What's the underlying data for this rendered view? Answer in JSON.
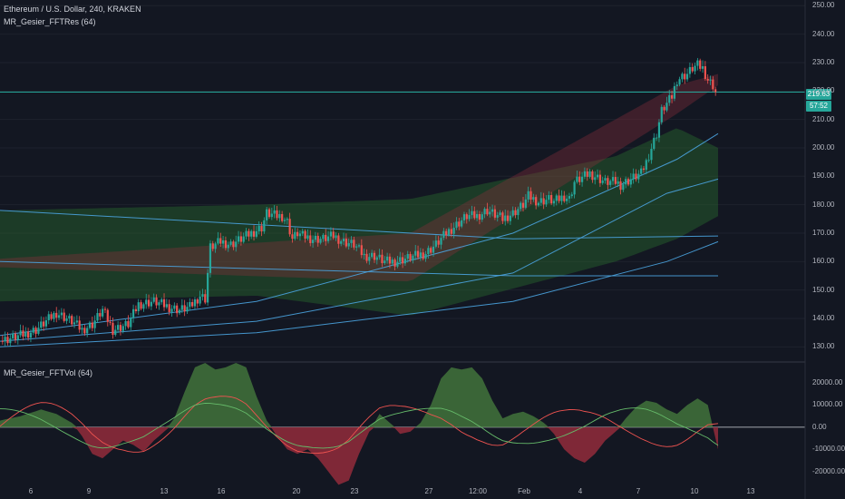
{
  "header": {
    "symbol_line": "Ethereum / U.S. Dollar, 240, KRAKEN",
    "indicator_main": "MR_Gesier_FFTRes (64)",
    "indicator_sub": "MR_Gesier_FFTVol (64)"
  },
  "price_tag": {
    "value": "219.63",
    "countdown": "57:52"
  },
  "colors": {
    "background": "#131722",
    "up": "#26a69a",
    "down": "#ef5350",
    "band_green": "#2e7d32",
    "band_red": "#8e2f3c",
    "line_blue": "#4aa3df",
    "price_line": "#26a69a",
    "osc_green": "#3f6e3a",
    "osc_red": "#8c2a3a"
  },
  "chart_data": [
    {
      "type": "candlestick",
      "title": "Ethereum / U.S. Dollar, 240, KRAKEN",
      "ylim": [
        125,
        252
      ],
      "y_ticks": [
        "250.00",
        "240.00",
        "230.00",
        "220.00",
        "210.00",
        "200.00",
        "190.00",
        "180.00",
        "170.00",
        "160.00",
        "150.00",
        "140.00",
        "130.00"
      ],
      "x_ticks": [
        "6",
        "9",
        "13",
        "16",
        "20",
        "23",
        "27",
        "12:00",
        "Feb",
        "4",
        "7",
        "10",
        "13"
      ],
      "last_price": 219.63,
      "close_path": [
        [
          0,
          132
        ],
        [
          8,
          134
        ],
        [
          14,
          136
        ],
        [
          22,
          142
        ],
        [
          28,
          139
        ],
        [
          32,
          136
        ],
        [
          36,
          138
        ],
        [
          40,
          143
        ],
        [
          44,
          136
        ],
        [
          50,
          138
        ],
        [
          54,
          145
        ],
        [
          60,
          146
        ],
        [
          66,
          144
        ],
        [
          70,
          143
        ],
        [
          74,
          144
        ],
        [
          78,
          148
        ],
        [
          80,
          147
        ],
        [
          82,
          165
        ],
        [
          86,
          167
        ],
        [
          90,
          166
        ],
        [
          94,
          168
        ],
        [
          98,
          170
        ],
        [
          102,
          172
        ],
        [
          104,
          177
        ],
        [
          108,
          176
        ],
        [
          110,
          176
        ],
        [
          112,
          174
        ],
        [
          114,
          168
        ],
        [
          116,
          170
        ],
        [
          118,
          169
        ],
        [
          122,
          168
        ],
        [
          126,
          168
        ],
        [
          130,
          169
        ],
        [
          134,
          167
        ],
        [
          138,
          166
        ],
        [
          142,
          162
        ],
        [
          146,
          162
        ],
        [
          150,
          160
        ],
        [
          154,
          160
        ],
        [
          158,
          161
        ],
        [
          162,
          162
        ],
        [
          166,
          163
        ],
        [
          170,
          166
        ],
        [
          174,
          170
        ],
        [
          178,
          173
        ],
        [
          182,
          176
        ],
        [
          186,
          176
        ],
        [
          190,
          178
        ],
        [
          194,
          176
        ],
        [
          196,
          175
        ],
        [
          200,
          177
        ],
        [
          204,
          180
        ],
        [
          206,
          183
        ],
        [
          210,
          181
        ],
        [
          214,
          182
        ],
        [
          216,
          181
        ],
        [
          218,
          182
        ],
        [
          220,
          183
        ],
        [
          222,
          182
        ],
        [
          224,
          188
        ],
        [
          228,
          190
        ],
        [
          230,
          191
        ],
        [
          232,
          190
        ],
        [
          236,
          188
        ],
        [
          240,
          188
        ],
        [
          242,
          187
        ],
        [
          246,
          189
        ],
        [
          250,
          191
        ],
        [
          252,
          195
        ],
        [
          256,
          205
        ],
        [
          258,
          213
        ],
        [
          262,
          218
        ],
        [
          264,
          224
        ],
        [
          266,
          225
        ],
        [
          268,
          226
        ],
        [
          270,
          228
        ],
        [
          272,
          229
        ],
        [
          274,
          228
        ],
        [
          276,
          224
        ],
        [
          278,
          222
        ],
        [
          279,
          219.63
        ]
      ],
      "bands": {
        "green_upper": [
          [
            0,
            178
          ],
          [
            100,
            180
          ],
          [
            160,
            182
          ],
          [
            240,
            197
          ],
          [
            264,
            207
          ],
          [
            280,
            200
          ]
        ],
        "green_lower": [
          [
            0,
            146
          ],
          [
            100,
            148
          ],
          [
            160,
            141
          ],
          [
            240,
            160
          ],
          [
            264,
            168
          ],
          [
            280,
            176
          ]
        ],
        "red_upper": [
          [
            0,
            161
          ],
          [
            160,
            170
          ],
          [
            264,
            222
          ],
          [
            280,
            226
          ]
        ],
        "red_lower": [
          [
            0,
            158
          ],
          [
            160,
            153
          ],
          [
            264,
            212
          ],
          [
            280,
            222
          ]
        ]
      },
      "lines": [
        {
          "name": "",
          "points": [
            [
              0,
              178
            ],
            [
              200,
              168
            ],
            [
              280,
              169
            ]
          ]
        },
        {
          "name": "",
          "points": [
            [
              0,
              160
            ],
            [
              200,
              155
            ],
            [
              280,
              155
            ]
          ]
        },
        {
          "name": "",
          "points": [
            [
              0,
              132
            ],
            [
              100,
              139
            ],
            [
              200,
              156
            ],
            [
              260,
              184
            ],
            [
              280,
              189
            ]
          ]
        },
        {
          "name": "",
          "points": [
            [
              0,
              130
            ],
            [
              100,
              135
            ],
            [
              200,
              146
            ],
            [
              260,
              160
            ],
            [
              280,
              167
            ]
          ]
        },
        {
          "name": "",
          "points": [
            [
              0,
              134
            ],
            [
              100,
              146
            ],
            [
              200,
              170
            ],
            [
              264,
              196
            ],
            [
              280,
              205
            ]
          ]
        }
      ]
    },
    {
      "type": "area",
      "title": "MR_Gesier_FFTVol (64)",
      "ylim": [
        -25000,
        29000
      ],
      "y_ticks": [
        "20000.00",
        "10000.00",
        "0.00",
        "-10000.00",
        "-20000.00"
      ],
      "series": [
        {
          "name": "",
          "values": [
            [
              0,
              3000
            ],
            [
              8,
              5000
            ],
            [
              16,
              8000
            ],
            [
              22,
              6000
            ],
            [
              28,
              2000
            ],
            [
              32,
              -4000
            ],
            [
              36,
              -12000
            ],
            [
              40,
              -14000
            ],
            [
              44,
              -10000
            ],
            [
              48,
              -6000
            ],
            [
              52,
              -8000
            ],
            [
              56,
              -11000
            ],
            [
              60,
              -6000
            ],
            [
              64,
              -2000
            ],
            [
              68,
              4000
            ],
            [
              72,
              16000
            ],
            [
              76,
              27000
            ],
            [
              80,
              29000
            ],
            [
              84,
              26000
            ],
            [
              88,
              27000
            ],
            [
              92,
              29000
            ],
            [
              96,
              27000
            ],
            [
              100,
              14000
            ],
            [
              104,
              3000
            ],
            [
              108,
              -4000
            ],
            [
              112,
              -10000
            ],
            [
              116,
              -12000
            ],
            [
              120,
              -10000
            ],
            [
              124,
              -14000
            ],
            [
              128,
              -20000
            ],
            [
              132,
              -26000
            ],
            [
              136,
              -24000
            ],
            [
              140,
              -12000
            ],
            [
              144,
              -2000
            ],
            [
              148,
              6000
            ],
            [
              152,
              2000
            ],
            [
              156,
              -3000
            ],
            [
              160,
              -2000
            ],
            [
              164,
              2000
            ],
            [
              168,
              10000
            ],
            [
              172,
              22000
            ],
            [
              176,
              27000
            ],
            [
              180,
              26000
            ],
            [
              184,
              27000
            ],
            [
              188,
              22000
            ],
            [
              192,
              12000
            ],
            [
              196,
              4000
            ],
            [
              200,
              6000
            ],
            [
              204,
              7000
            ],
            [
              208,
              5000
            ],
            [
              212,
              2000
            ],
            [
              216,
              -3000
            ],
            [
              220,
              -10000
            ],
            [
              224,
              -14000
            ],
            [
              228,
              -16000
            ],
            [
              232,
              -12000
            ],
            [
              236,
              -6000
            ],
            [
              240,
              -2000
            ],
            [
              244,
              4000
            ],
            [
              248,
              9000
            ],
            [
              252,
              12000
            ],
            [
              256,
              11000
            ],
            [
              260,
              8000
            ],
            [
              264,
              6000
            ],
            [
              268,
              10000
            ],
            [
              272,
              13000
            ],
            [
              276,
              10000
            ],
            [
              280,
              -10000
            ]
          ]
        }
      ]
    }
  ]
}
